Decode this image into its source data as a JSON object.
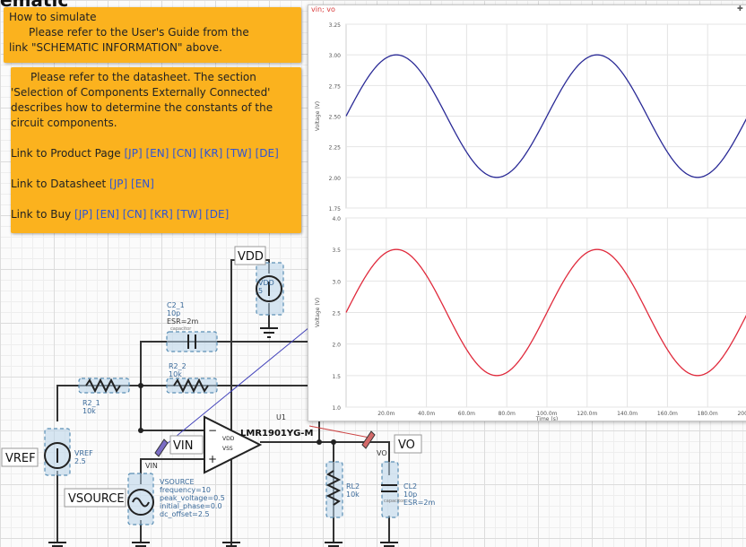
{
  "page": {
    "title_fragment": "ematic"
  },
  "notes": {
    "simulate": {
      "heading": "How to simulate",
      "line1": "Please refer to the User's Guide from the",
      "line2": "link \"SCHEMATIC INFORMATION\" above."
    },
    "datasheet": {
      "line1": "Please refer to the datasheet. The section",
      "line2": "'Selection of Components Externally Connected'",
      "line3": "describes how to determine the constants of the",
      "line4": "circuit components.",
      "product_label": "Link to Product Page ",
      "product_links": [
        "[JP]",
        "[EN]",
        "[CN]",
        "[KR]",
        "[TW]",
        "[DE]"
      ],
      "datasheet_label": "Link to Datasheet ",
      "datasheet_links": [
        "[JP]",
        "[EN]"
      ],
      "buy_label": "Link to Buy ",
      "buy_links": [
        "[JP]",
        "[EN]",
        "[CN]",
        "[KR]",
        "[TW]",
        "[DE]"
      ]
    }
  },
  "plot_window": {
    "title": "vin; vo",
    "pin_icon": "pin-icon",
    "close_icon": "close-icon"
  },
  "chart_data": [
    {
      "type": "line",
      "ylabel": "Voltage (V)",
      "xlim": [
        0,
        0.2
      ],
      "ylim": [
        1.75,
        3.25
      ],
      "yticks": [
        "1.75",
        "2.00",
        "2.25",
        "2.50",
        "2.75",
        "3.00",
        "3.25"
      ],
      "grid": true,
      "series": [
        {
          "color": "#2a2a96",
          "offset": 2.5,
          "amplitude": 0.5,
          "frequency": 10
        }
      ]
    },
    {
      "type": "line",
      "xlabel": "Time (s)",
      "ylabel": "Voltage (V)",
      "xlim": [
        0,
        0.2
      ],
      "ylim": [
        1.0,
        4.0
      ],
      "yticks": [
        "1.0",
        "1.5",
        "2.0",
        "2.5",
        "3.0",
        "3.5",
        "4.0"
      ],
      "xticks": [
        "20.0m",
        "40.0m",
        "60.0m",
        "80.0m",
        "100.0m",
        "120.0m",
        "140.0m",
        "160.0m",
        "180.0m",
        "200.0m"
      ],
      "grid": true,
      "series": [
        {
          "color": "#e02a3c",
          "offset": 2.5,
          "amplitude": 1.0,
          "frequency": 10
        }
      ]
    }
  ],
  "schematic": {
    "vdd_label": "VDD",
    "vdd_src": {
      "name": "VDD",
      "value": "5"
    },
    "c2": {
      "name": "C2_1",
      "value": "10p",
      "esr": "ESR=2m",
      "sub": "capacitor"
    },
    "r22": {
      "name": "R2_2",
      "value": "10k"
    },
    "r21": {
      "name": "R2_1",
      "value": "10k"
    },
    "u1": {
      "ref": "U1",
      "part": "LMR1901YG-M",
      "vdd_pin": "VDD",
      "vss_pin": "VSS",
      "minus": "−",
      "plus": "+"
    },
    "vin_label": "VIN",
    "vin_net": "VIN",
    "vref_label": "VREF",
    "vref_src": {
      "name": "VREF",
      "value": "2.5"
    },
    "vsource_label": "VSOURCE",
    "vsource_params": [
      "VSOURCE",
      "frequency=10",
      "peak_voltage=0.5",
      "initial_phase=0.0",
      "dc_offset=2.5"
    ],
    "vo_label": "VO",
    "vo_net": "VO",
    "rl2": {
      "name": "RL2",
      "value": "10k"
    },
    "cl2": {
      "name": "CL2",
      "value": "10p",
      "esr": "ESR=2m",
      "sub": "capacitor"
    }
  }
}
